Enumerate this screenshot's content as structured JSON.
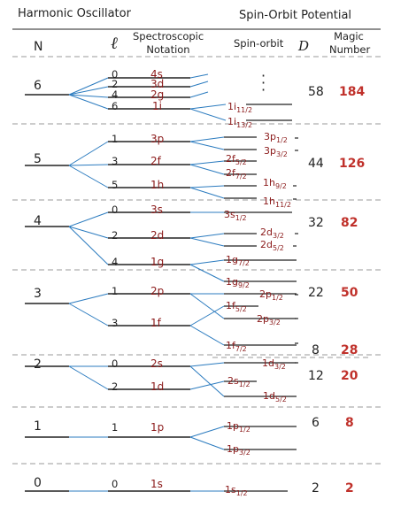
{
  "titles": {
    "left": "Harmonic Oscillator",
    "right": "Spin-Orbit Potential"
  },
  "columns": {
    "n": "N",
    "l": "ℓ",
    "spec_line1": "Spectroscopic",
    "spec_line2": "Notation",
    "spin_orbit": "Spin-orbit",
    "d": "D",
    "magic_line1": "Magic",
    "magic_line2": "Number"
  },
  "shells": [
    {
      "n": "6",
      "l": [
        "0",
        "2",
        "4",
        "6"
      ],
      "spec": [
        "4s",
        "3d",
        "2g",
        "1i"
      ]
    },
    {
      "n": "5",
      "l": [
        "1",
        "3",
        "5"
      ],
      "spec": [
        "3p",
        "2f",
        "1h"
      ]
    },
    {
      "n": "4",
      "l": [
        "0",
        "2",
        "4"
      ],
      "spec": [
        "3s",
        "2d",
        "1g"
      ]
    },
    {
      "n": "3",
      "l": [
        "1",
        "3"
      ],
      "spec": [
        "2p",
        "1f"
      ]
    },
    {
      "n": "2",
      "l": [
        "0",
        "2"
      ],
      "spec": [
        "2s",
        "1d"
      ]
    },
    {
      "n": "1",
      "l": [
        "1"
      ],
      "spec": [
        "1p"
      ]
    },
    {
      "n": "0",
      "l": [
        "0"
      ],
      "spec": [
        "1s"
      ]
    }
  ],
  "spin_orbit_levels": [
    {
      "base": "1i",
      "sub": "11/2"
    },
    {
      "base": "1i",
      "sub": "13/2"
    },
    {
      "base": "3p",
      "sub": "1/2"
    },
    {
      "base": "3p",
      "sub": "3/2"
    },
    {
      "base": "2f",
      "sub": "5/2"
    },
    {
      "base": "2f",
      "sub": "7/2"
    },
    {
      "base": "1h",
      "sub": "9/2"
    },
    {
      "base": "1h",
      "sub": "11/2"
    },
    {
      "base": "3s",
      "sub": "1/2"
    },
    {
      "base": "2d",
      "sub": "3/2"
    },
    {
      "base": "2d",
      "sub": "5/2"
    },
    {
      "base": "1g",
      "sub": "7/2"
    },
    {
      "base": "1g",
      "sub": "9/2"
    },
    {
      "base": "2p",
      "sub": "1/2"
    },
    {
      "base": "1f",
      "sub": "5/2"
    },
    {
      "base": "2p",
      "sub": "3/2"
    },
    {
      "base": "1f",
      "sub": "7/2"
    },
    {
      "base": "1d",
      "sub": "3/2"
    },
    {
      "base": "2s",
      "sub": "1/2"
    },
    {
      "base": "1d",
      "sub": "5/2"
    },
    {
      "base": "1p",
      "sub": "1/2"
    },
    {
      "base": "1p",
      "sub": "3/2"
    },
    {
      "base": "1s",
      "sub": "1/2"
    }
  ],
  "degeneracy": [
    "58",
    "44",
    "32",
    "22",
    "8",
    "12",
    "6",
    "2"
  ],
  "magic": [
    "184",
    "126",
    "82",
    "50",
    "28",
    "20",
    "8",
    "2"
  ],
  "colors": {
    "accent": "#8b1a1a",
    "magic": "#c0312b",
    "connector": "#2b7bbf",
    "line": "#222222",
    "dash": "#9a9a9a"
  }
}
